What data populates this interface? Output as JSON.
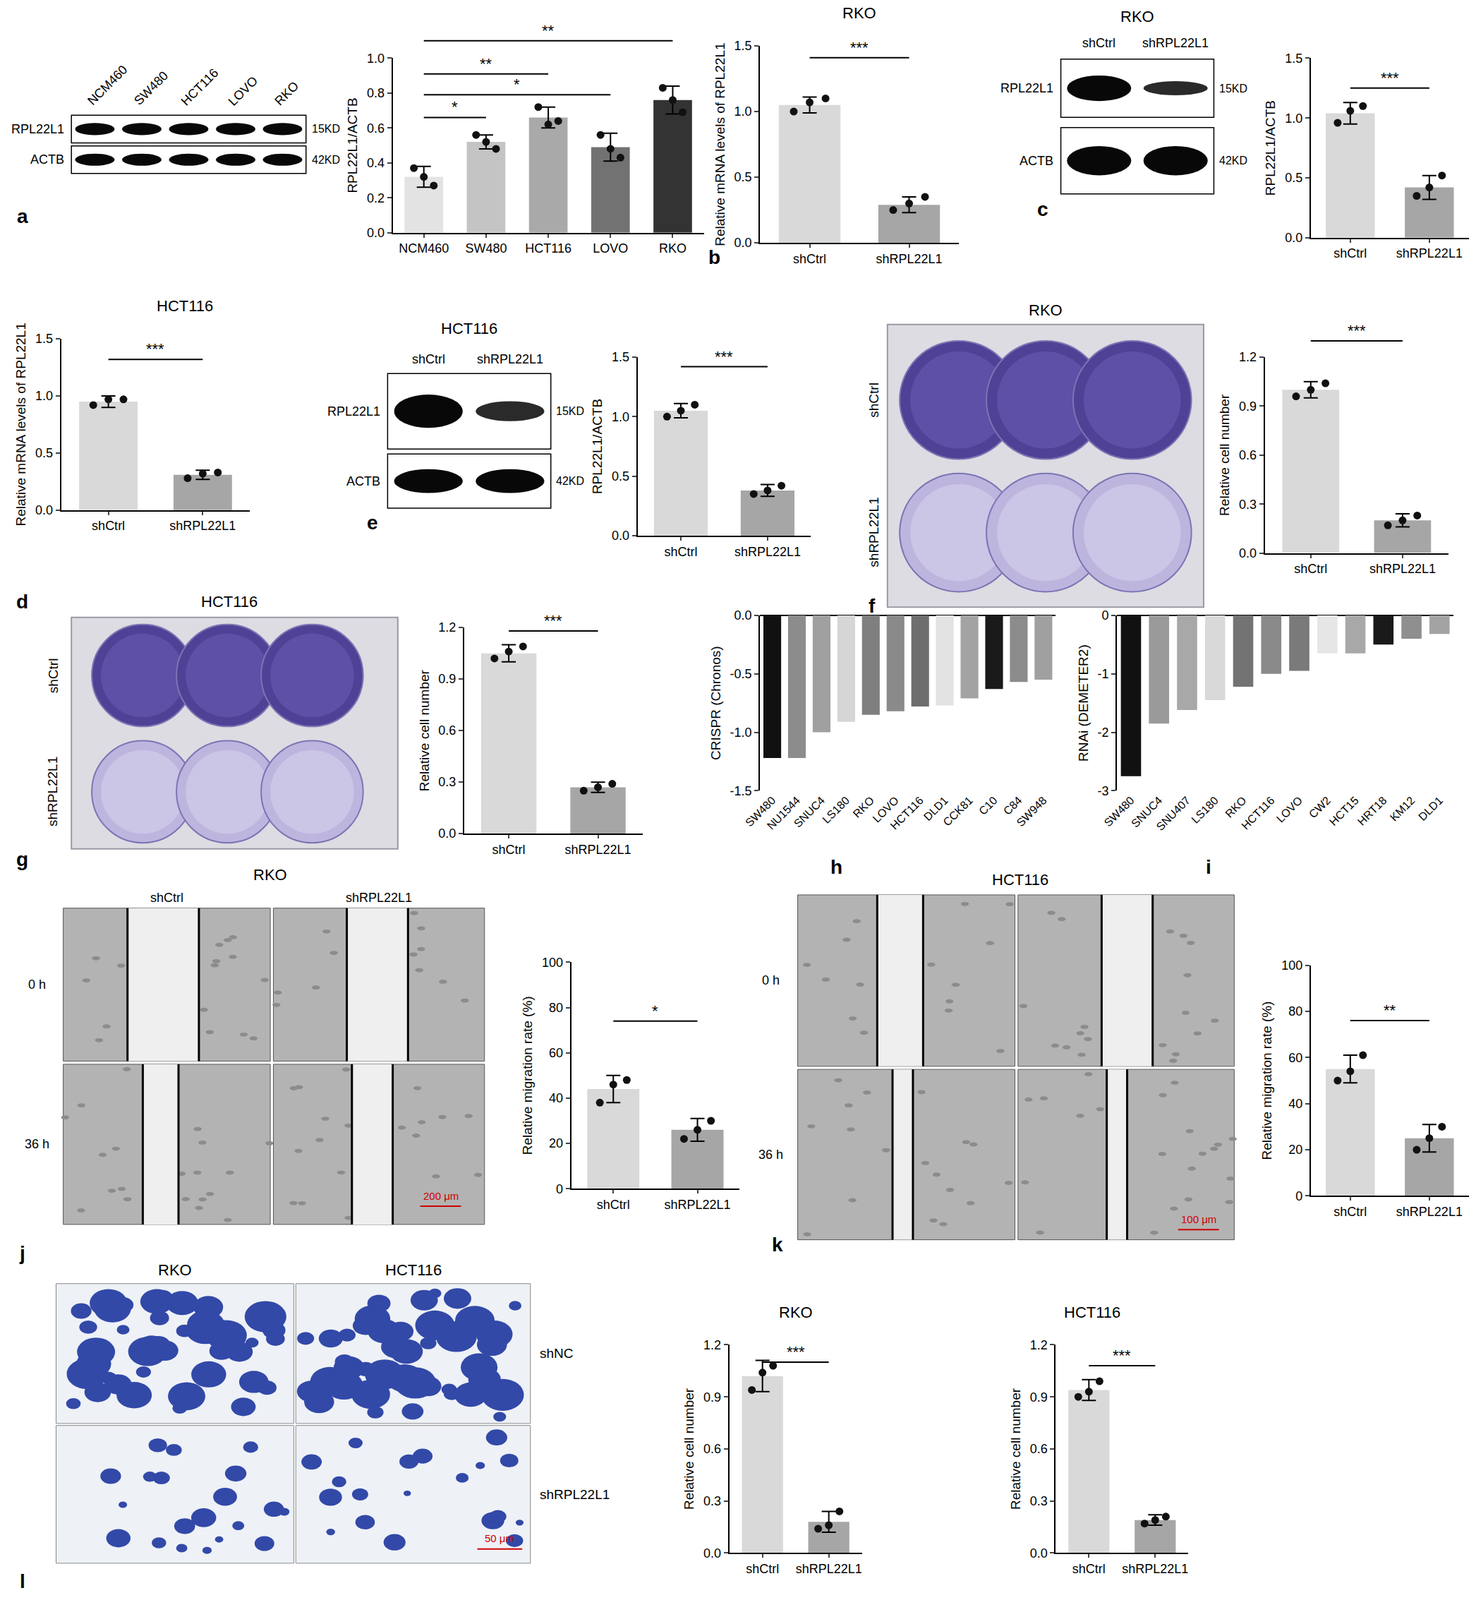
{
  "chart_data": [
    {
      "type": "bar",
      "y_label": "RPL22L1/ACTB",
      "categories": [
        "NCM460",
        "SW480",
        "HCT116",
        "LOVO",
        "RKO"
      ],
      "values": [
        0.32,
        0.52,
        0.66,
        0.49,
        0.76
      ],
      "errors": [
        0.06,
        0.04,
        0.06,
        0.08,
        0.08
      ],
      "points": [
        [
          0.37,
          0.32,
          0.27
        ],
        [
          0.56,
          0.52,
          0.48
        ],
        [
          0.72,
          0.62,
          0.64
        ],
        [
          0.56,
          0.48,
          0.43
        ],
        [
          0.83,
          0.76,
          0.69
        ]
      ],
      "colors": [
        "#e3e3e3",
        "#c4c4c4",
        "#a9a9a9",
        "#727272",
        "#333333"
      ],
      "marker": "circle",
      "ylim": [
        0,
        1
      ],
      "yticks": [
        {
          "value": 0,
          "label": "0.0"
        },
        0.2,
        0.4,
        0.6,
        0.8,
        {
          "value": 1,
          "label": "1.0"
        }
      ],
      "significance": [
        {
          "from": 0,
          "to": 1,
          "label": "*",
          "y": 0.66
        },
        {
          "from": 0,
          "to": 3,
          "label": "*",
          "y": 0.79
        },
        {
          "from": 0,
          "to": 2,
          "label": "**",
          "y": 0.91
        },
        {
          "from": 0,
          "to": 4,
          "label": "**",
          "y": 1.1
        }
      ]
    },
    {
      "type": "bar",
      "title": "RKO",
      "y_label": "Relative mRNA levels of RPL22L1",
      "categories": [
        "shCtrl",
        "shRPL22L1"
      ],
      "values": [
        1.05,
        0.29
      ],
      "errors": [
        0.06,
        0.06
      ],
      "points": [
        [
          1.0,
          1.07,
          1.1
        ],
        [
          0.25,
          0.3,
          0.35
        ]
      ],
      "colors": [
        "#d9d9d9",
        "#a6a6a6"
      ],
      "marker": "circle",
      "ylim": [
        0,
        1.5
      ],
      "yticks": [
        {
          "value": 0,
          "label": "0.0"
        },
        0.5,
        {
          "value": 1,
          "label": "1.0"
        },
        1.5
      ],
      "significance": [
        {
          "from": 0,
          "to": 1,
          "label": "***",
          "y": 1.41
        }
      ]
    },
    {
      "type": "bar",
      "y_label": "RPL22L1/ACTB",
      "categories": [
        "shCtrl",
        "shRPL22L1"
      ],
      "values": [
        1.04,
        0.42
      ],
      "errors": [
        0.09,
        0.1
      ],
      "points": [
        [
          0.96,
          1.06,
          1.1
        ],
        [
          0.35,
          0.42,
          0.52
        ]
      ],
      "colors": [
        "#d9d9d9",
        "#a6a6a6"
      ],
      "marker": "circle",
      "ylim": [
        0,
        1.5
      ],
      "yticks": [
        {
          "value": 0,
          "label": "0.0"
        },
        0.5,
        {
          "value": 1,
          "label": "1.0"
        },
        1.5
      ],
      "significance": [
        {
          "from": 0,
          "to": 1,
          "label": "***",
          "y": 1.25
        }
      ]
    },
    {
      "type": "bar",
      "title": "HCT116",
      "y_label": "Relative mRNA levels of RPL22L1",
      "categories": [
        "shCtrl",
        "shRPL22L1"
      ],
      "values": [
        0.95,
        0.31
      ],
      "errors": [
        0.05,
        0.04
      ],
      "points": [
        [
          0.92,
          0.97,
          0.97
        ],
        [
          0.28,
          0.32,
          0.33
        ]
      ],
      "colors": [
        "#d9d9d9",
        "#a6a6a6"
      ],
      "marker": "circle",
      "ylim": [
        0,
        1.5
      ],
      "yticks": [
        {
          "value": 0,
          "label": "0.0"
        },
        0.5,
        {
          "value": 1,
          "label": "1.0"
        },
        1.5
      ],
      "significance": [
        {
          "from": 0,
          "to": 1,
          "label": "***",
          "y": 1.32
        }
      ]
    },
    {
      "type": "bar",
      "y_label": "RPL22L1/ACTB",
      "categories": [
        "shCtrl",
        "shRPL22L1"
      ],
      "values": [
        1.05,
        0.38
      ],
      "errors": [
        0.06,
        0.05
      ],
      "points": [
        [
          1.0,
          1.05,
          1.1
        ],
        [
          0.35,
          0.38,
          0.42
        ]
      ],
      "colors": [
        "#d9d9d9",
        "#a6a6a6"
      ],
      "marker": "circle",
      "ylim": [
        0,
        1.5
      ],
      "yticks": [
        {
          "value": 0,
          "label": "0.0"
        },
        0.5,
        {
          "value": 1,
          "label": "1.0"
        },
        1.5
      ],
      "significance": [
        {
          "from": 0,
          "to": 1,
          "label": "***",
          "y": 1.42
        }
      ]
    },
    {
      "type": "bar",
      "y_label": "Relative cell number",
      "categories": [
        "shCtrl",
        "shRPL22L1"
      ],
      "values": [
        1.0,
        0.2
      ],
      "errors": [
        0.05,
        0.04
      ],
      "points": [
        [
          0.96,
          1.0,
          1.04
        ],
        [
          0.17,
          0.2,
          0.23
        ]
      ],
      "colors": [
        "#d9d9d9",
        "#a6a6a6"
      ],
      "marker": "circle",
      "ylim": [
        0,
        1.2
      ],
      "yticks": [
        {
          "value": 0,
          "label": "0.0"
        },
        0.3,
        0.6,
        0.9,
        1.2
      ],
      "significance": [
        {
          "from": 0,
          "to": 1,
          "label": "***",
          "y": 1.3
        }
      ]
    },
    {
      "type": "bar",
      "y_label": "Relative cell number",
      "categories": [
        "shCtrl",
        "shRPL22L1"
      ],
      "values": [
        1.05,
        0.27
      ],
      "errors": [
        0.05,
        0.03
      ],
      "points": [
        [
          1.02,
          1.06,
          1.09
        ],
        [
          0.25,
          0.27,
          0.29
        ]
      ],
      "colors": [
        "#d9d9d9",
        "#a6a6a6"
      ],
      "marker": "circle",
      "ylim": [
        0,
        1.2
      ],
      "yticks": [
        {
          "value": 0,
          "label": "0.0"
        },
        0.3,
        0.6,
        0.9,
        1.2
      ],
      "significance": [
        {
          "from": 0,
          "to": 1,
          "label": "***",
          "y": 1.18
        }
      ]
    },
    {
      "type": "bar",
      "y_label": "CRISPR (Chronos)",
      "categories": [
        "SW480",
        "NU1544",
        "SNUC4",
        "LS180",
        "RKO",
        "LOVO",
        "HCT116",
        "DLD1",
        "CCK81",
        "C10",
        "C84",
        "SW948"
      ],
      "values": [
        -1.22,
        -1.22,
        -1.0,
        -0.91,
        -0.85,
        -0.82,
        -0.78,
        -0.77,
        -0.71,
        -0.63,
        -0.57,
        -0.55
      ],
      "colors": [
        "#111111",
        "#8c8c8c",
        "#a0a0a0",
        "#d6d6d6",
        "#7f7f7f",
        "#8a8a8a",
        "#6e6e6e",
        "#e3e3e3",
        "#a3a3a3",
        "#1a1a1a",
        "#8c8c8c",
        "#a0a0a0"
      ],
      "ylim": [
        -1.5,
        0
      ],
      "yticks": [
        {
          "value": 0,
          "label": "0.0"
        },
        -0.5,
        {
          "value": -1,
          "label": "-1.0"
        },
        -1.5
      ]
    },
    {
      "type": "bar",
      "y_label": "RNAi (DEMETER2)",
      "categories": [
        "SW480",
        "SNUC4",
        "SNU407",
        "LS180",
        "RKO",
        "HCT116",
        "LOVO",
        "CW2",
        "HCT15",
        "HRT18",
        "KM12",
        "DLD1"
      ],
      "values": [
        -2.75,
        -1.85,
        -1.62,
        -1.45,
        -1.22,
        -1.0,
        -0.95,
        -0.65,
        -0.65,
        -0.5,
        -0.4,
        -0.32
      ],
      "colors": [
        "#111111",
        "#9a9a9a",
        "#a8a8a8",
        "#d9d9d9",
        "#737373",
        "#8a8a8a",
        "#7a7a7a",
        "#e6e6e6",
        "#a8a8a8",
        "#1a1a1a",
        "#8f8f8f",
        "#a3a3a3"
      ],
      "ylim": [
        -3,
        0
      ],
      "yticks": [
        0,
        -1,
        -2,
        -3
      ]
    },
    {
      "type": "bar",
      "y_label": "Relative migration rate (%)",
      "categories": [
        "shCtrl",
        "shRPL22L1"
      ],
      "values": [
        44,
        26
      ],
      "errors": [
        6,
        5
      ],
      "points": [
        [
          38,
          46,
          48
        ],
        [
          22,
          26,
          30
        ]
      ],
      "colors": [
        "#d9d9d9",
        "#a6a6a6"
      ],
      "marker": "circle",
      "ylim": [
        0,
        100
      ],
      "yticks": [
        0,
        20,
        40,
        60,
        80,
        100
      ],
      "significance": [
        {
          "from": 0,
          "to": 1,
          "label": "*",
          "y": 74
        }
      ]
    },
    {
      "type": "bar",
      "y_label": "Relative migration rate (%)",
      "categories": [
        "shCtrl",
        "shRPL22L1"
      ],
      "values": [
        55,
        25
      ],
      "errors": [
        6,
        6
      ],
      "points": [
        [
          50,
          54,
          61
        ],
        [
          20,
          25,
          30
        ]
      ],
      "colors": [
        "#d9d9d9",
        "#a6a6a6"
      ],
      "marker": "circle",
      "ylim": [
        0,
        100
      ],
      "yticks": [
        0,
        20,
        40,
        60,
        80,
        100
      ],
      "significance": [
        {
          "from": 0,
          "to": 1,
          "label": "**",
          "y": 76
        }
      ]
    },
    {
      "type": "bar",
      "title": "RKO",
      "y_label": "Relative cell number",
      "categories": [
        "shCtrl",
        "shRPL22L1"
      ],
      "values": [
        1.02,
        0.18
      ],
      "errors": [
        0.09,
        0.06
      ],
      "points": [
        [
          0.94,
          1.04,
          1.08
        ],
        [
          0.14,
          0.16,
          0.24
        ]
      ],
      "colors": [
        "#d9d9d9",
        "#a6a6a6"
      ],
      "marker": "circle",
      "ylim": [
        0,
        1.2
      ],
      "yticks": [
        {
          "value": 0,
          "label": "0.0"
        },
        0.3,
        0.6,
        0.9,
        1.2
      ],
      "significance": [
        {
          "from": 0,
          "to": 1,
          "label": "***",
          "y": 1.1
        }
      ]
    },
    {
      "type": "bar",
      "title": "HCT116",
      "y_label": "Relative cell number",
      "categories": [
        "shCtrl",
        "shRPL22L1"
      ],
      "values": [
        0.94,
        0.19
      ],
      "errors": [
        0.06,
        0.03
      ],
      "points": [
        [
          0.9,
          0.93,
          0.99
        ],
        [
          0.17,
          0.19,
          0.21
        ]
      ],
      "colors": [
        "#d9d9d9",
        "#a6a6a6"
      ],
      "marker": "circle",
      "ylim": [
        0,
        1.2
      ],
      "yticks": [
        {
          "value": 0,
          "label": "0.0"
        },
        0.3,
        0.6,
        0.9,
        1.2
      ],
      "significance": [
        {
          "from": 0,
          "to": 1,
          "label": "***",
          "y": 1.08
        }
      ]
    }
  ],
  "images": [
    {
      "kind": "blot",
      "lanes": [
        "NCM460",
        "SW480",
        "HCT116",
        "LOVO",
        "RKO"
      ],
      "rows": [
        {
          "name": "RPL22L1",
          "size": "15KD"
        },
        {
          "name": "ACTB",
          "size": "42KD"
        }
      ]
    },
    {
      "kind": "blot",
      "title": "RKO",
      "lanes": [
        "shCtrl",
        "shRPL22L1"
      ],
      "rows": [
        {
          "name": "RPL22L1",
          "size": "15KD"
        },
        {
          "name": "ACTB",
          "size": "42KD"
        }
      ]
    },
    {
      "kind": "blot",
      "title": "HCT116",
      "lanes": [
        "shCtrl",
        "shRPL22L1"
      ],
      "rows": [
        {
          "name": "RPL22L1",
          "size": "15KD"
        },
        {
          "name": "ACTB",
          "size": "42KD"
        }
      ]
    },
    {
      "kind": "plate",
      "title": "RKO",
      "rows": [
        "shCtrl",
        "shRPL22L1"
      ]
    },
    {
      "kind": "plate",
      "title": "HCT116",
      "rows": [
        "shCtrl",
        "shRPL22L1"
      ]
    },
    {
      "kind": "wound",
      "title": "RKO",
      "columns": [
        "shCtrl",
        "shRPL22L1"
      ],
      "rows": [
        "0 h",
        "36 h"
      ],
      "scale_bar": "200 μm"
    },
    {
      "kind": "wound",
      "title": "HCT116",
      "rows": [
        "0 h",
        "36 h"
      ],
      "scale_bar": "100 μm"
    },
    {
      "kind": "transwell",
      "columns": [
        "RKO",
        "HCT116"
      ],
      "rows": [
        "shNC",
        "shRPL22L1"
      ],
      "scale_bar": "50 μm"
    }
  ],
  "panel_labels": [
    "a",
    "b",
    "c",
    "d",
    "e",
    "f",
    "g",
    "h",
    "i",
    "j",
    "k",
    "l"
  ]
}
